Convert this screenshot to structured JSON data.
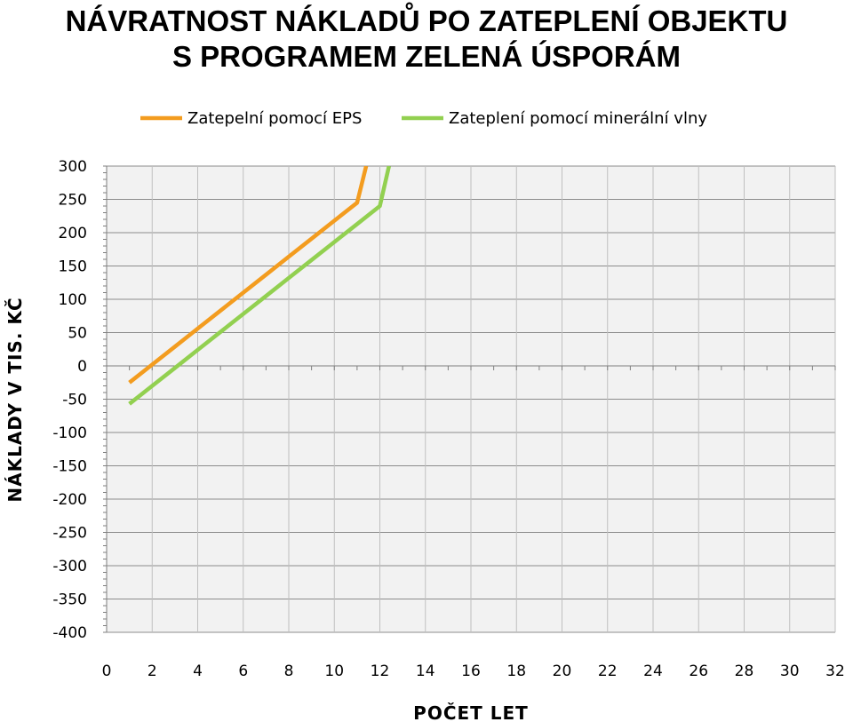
{
  "chart_data": {
    "type": "line",
    "title": "NÁVRATNOST NÁKLADŮ PO ZATEPLENÍ OBJEKTU",
    "subtitle": "S PROGRAMEM ZELENÁ ÚSPORÁM",
    "xlabel": "POČET LET",
    "ylabel": "NÁKLADY V TIS. KČ",
    "xlim": [
      0,
      32
    ],
    "ylim": [
      -400,
      300
    ],
    "x_ticks": [
      "0",
      "2",
      "4",
      "6",
      "8",
      "10",
      "12",
      "14",
      "16",
      "18",
      "20",
      "22",
      "24",
      "26",
      "28",
      "30",
      "32"
    ],
    "y_ticks": [
      "300",
      "250",
      "200",
      "150",
      "100",
      "50",
      "0",
      "-50",
      "-100",
      "-150",
      "-200",
      "-250",
      "-300",
      "-350",
      "-400"
    ],
    "grid": true,
    "legend_position": "top",
    "series": [
      {
        "name": "Zatepelní pomocí EPS",
        "color": "#f39c1f",
        "x": [
          1,
          2,
          3,
          4,
          5,
          6,
          7,
          8,
          9,
          10,
          11,
          11.4
        ],
        "y": [
          -25,
          2,
          29,
          56,
          83,
          110,
          137,
          164,
          191,
          218,
          245,
          300
        ]
      },
      {
        "name": "Zateplení pomocí minerální vlny",
        "color": "#92d050",
        "x": [
          1,
          2,
          3,
          4,
          5,
          6,
          7,
          8,
          9,
          10,
          11,
          12,
          12.4
        ],
        "y": [
          -57,
          -30,
          -3,
          24,
          51,
          78,
          105,
          132,
          159,
          186,
          213,
          240,
          300
        ]
      }
    ]
  }
}
